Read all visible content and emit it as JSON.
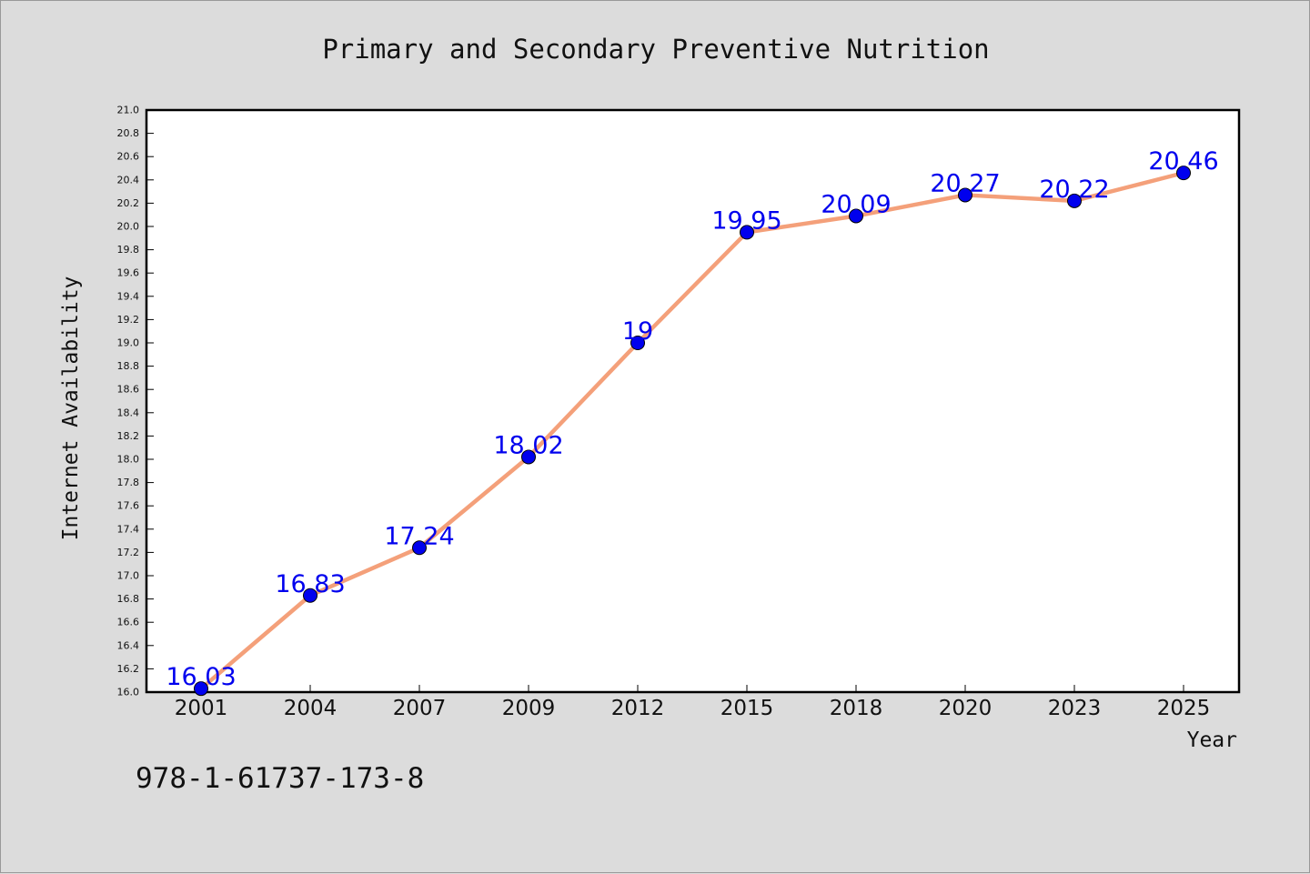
{
  "chart_data": {
    "type": "line",
    "title": "Primary and Secondary Preventive Nutrition",
    "xlabel": "Year",
    "ylabel": "Internet Availability",
    "categories": [
      "2001",
      "2004",
      "2007",
      "2009",
      "2012",
      "2015",
      "2018",
      "2020",
      "2023",
      "2025"
    ],
    "series": [
      {
        "values": [
          16.03,
          16.83,
          17.24,
          18.02,
          19,
          19.95,
          20.09,
          20.27,
          20.22,
          20.46
        ],
        "data_labels": [
          "16.03",
          "16.83",
          "17.24",
          "18.02",
          "19",
          "19.95",
          "20.09",
          "20.27",
          "20.22",
          "20.46"
        ],
        "line_color": "#f4a07a",
        "marker_color": "#0000ee"
      }
    ],
    "ylim": [
      16.0,
      21.0
    ],
    "ytick_step": 0.2,
    "grid": false,
    "legend": "none"
  },
  "footer_text": "978-1-61737-173-8",
  "colors": {
    "background": "#dcdcdc",
    "plot_background": "#ffffff",
    "label_color": "#0000ee"
  }
}
